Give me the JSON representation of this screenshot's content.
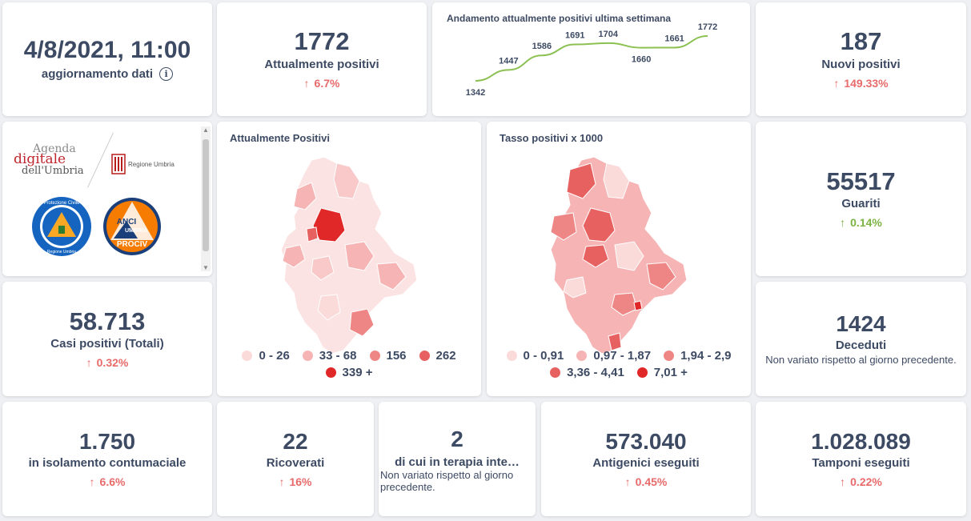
{
  "update": {
    "datetime": "4/8/2021, 11:00",
    "label": "aggiornamento dati",
    "info_icon": "info-icon"
  },
  "positivi": {
    "value": "1772",
    "label": "Attualmente positivi",
    "delta": "6.7%",
    "arrow": "↑"
  },
  "trend": {
    "title": "Andamento attualmente positivi ultima settimana",
    "values": [
      1342,
      1447,
      1586,
      1691,
      1704,
      1660,
      1661,
      1772
    ],
    "labels": [
      "1342",
      "1447",
      "1586",
      "1691",
      "1704",
      "1660",
      "1661",
      "1772"
    ],
    "color": "#8cc152"
  },
  "nuovi": {
    "value": "187",
    "label": "Nuovi positivi",
    "delta": "149.33%",
    "arrow": "↑"
  },
  "logos": {
    "agenda_line1": "Agenda",
    "agenda_line2": "digitale",
    "agenda_line3": "dell'Umbria",
    "regione": "Regione Umbria",
    "protezione_text": "Protezione Civile",
    "protezione_sub": "Regione Umbria",
    "anci_line1": "ANCI",
    "anci_line2": "UMBRIA",
    "anci_line3": "PROCIV"
  },
  "map1": {
    "title": "Attualmente Positivi",
    "legend": [
      {
        "label": "0 - 26",
        "color": "#fbdada"
      },
      {
        "label": "33 - 68",
        "color": "#f6b4b4"
      },
      {
        "label": "156",
        "color": "#ef8686"
      },
      {
        "label": "262",
        "color": "#e86161"
      },
      {
        "label": "339 +",
        "color": "#e12828"
      }
    ]
  },
  "map2": {
    "title": "Tasso positivi x 1000",
    "legend": [
      {
        "label": "0 - 0,91",
        "color": "#fbdada"
      },
      {
        "label": "0,97 - 1,87",
        "color": "#f6b4b4"
      },
      {
        "label": "1,94 - 2,9",
        "color": "#ef8686"
      },
      {
        "label": "3,36 - 4,41",
        "color": "#e86161"
      },
      {
        "label": "7,01 +",
        "color": "#e12828"
      }
    ]
  },
  "guariti": {
    "value": "55517",
    "label": "Guariti",
    "delta": "0.14%",
    "arrow": "↑"
  },
  "totali": {
    "value": "58.713",
    "label": "Casi positivi (Totali)",
    "delta": "0.32%",
    "arrow": "↑"
  },
  "deceduti": {
    "value": "1424",
    "label": "Deceduti",
    "note": "Non variato rispetto al giorno precedente."
  },
  "isolamento": {
    "value": "1.750",
    "label": "in isolamento contumaciale",
    "delta": "6.6%",
    "arrow": "↑"
  },
  "ricoverati": {
    "value": "22",
    "label": "Ricoverati",
    "delta": "16%",
    "arrow": "↑"
  },
  "terapia": {
    "value": "2",
    "label": "di cui in terapia inte…",
    "note": "Non variato rispetto al giorno precedente."
  },
  "antigenici": {
    "value": "573.040",
    "label": "Antigenici eseguiti",
    "delta": "0.45%",
    "arrow": "↑"
  },
  "tamponi": {
    "value": "1.028.089",
    "label": "Tamponi eseguiti",
    "delta": "0.22%",
    "arrow": "↑"
  }
}
